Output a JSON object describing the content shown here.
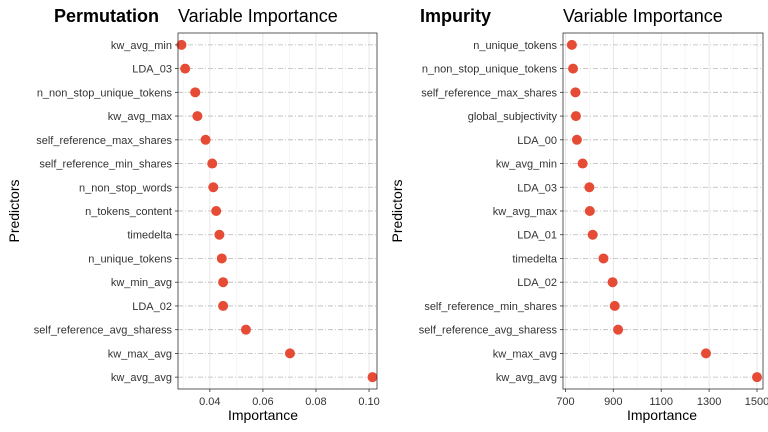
{
  "chart_data": [
    {
      "type": "scatter",
      "panel_tag": "Permutation",
      "title": "Variable Importance",
      "xlabel": "Importance",
      "ylabel": "Predictors",
      "xlim": [
        0.028,
        0.103
      ],
      "xticks": [
        0.04,
        0.06,
        0.08,
        0.1
      ],
      "xtick_labels": [
        "0.04",
        "0.06",
        "0.08",
        "0.10"
      ],
      "grid": true,
      "point_color": "#e64b35",
      "categories": [
        "kw_avg_min",
        "LDA_03",
        "n_non_stop_unique_tokens",
        "kw_avg_max",
        "self_reference_max_shares",
        "self_reference_min_shares",
        "n_non_stop_words",
        "n_tokens_content",
        "timedelta",
        "n_unique_tokens",
        "kw_min_avg",
        "LDA_02",
        "self_reference_avg_sharess",
        "kw_max_avg",
        "kw_avg_avg"
      ],
      "values": [
        0.0293,
        0.0307,
        0.0345,
        0.0353,
        0.0384,
        0.0409,
        0.0413,
        0.0424,
        0.0436,
        0.0445,
        0.045,
        0.045,
        0.0536,
        0.0702,
        0.1013
      ]
    },
    {
      "type": "scatter",
      "panel_tag": "Impurity",
      "title": "Variable Importance",
      "xlabel": "Importance",
      "ylabel": "Predictors",
      "xlim": [
        690,
        1525
      ],
      "xticks": [
        700,
        900,
        1100,
        1300,
        1500
      ],
      "xtick_labels": [
        "700",
        "900",
        "1100",
        "1300",
        "1500"
      ],
      "grid": true,
      "point_color": "#e64b35",
      "categories": [
        "n_unique_tokens",
        "n_non_stop_unique_tokens",
        "self_reference_max_shares",
        "global_subjectivity",
        "LDA_00",
        "kw_avg_min",
        "LDA_03",
        "kw_avg_max",
        "LDA_01",
        "timedelta",
        "LDA_02",
        "self_reference_min_shares",
        "self_reference_avg_sharess",
        "kw_max_avg",
        "kw_avg_avg"
      ],
      "values": [
        727,
        732,
        742,
        744,
        748,
        772,
        800,
        802,
        814,
        859,
        897,
        906,
        920,
        1287,
        1500
      ]
    }
  ]
}
